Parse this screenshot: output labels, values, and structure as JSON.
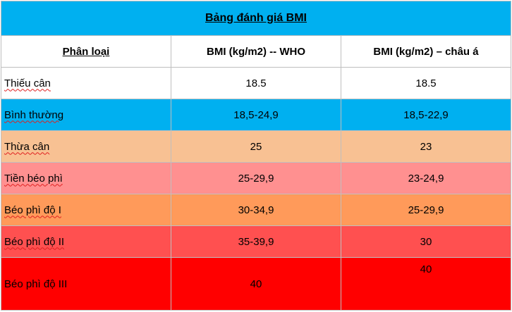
{
  "table": {
    "title": "Bảng đánh giá BMI",
    "headers": [
      "Phân loại",
      "BMI (kg/m2) -- WHO",
      "BMI (kg/m2) – châu á"
    ],
    "rows": [
      {
        "category": "Thiếu cân",
        "who": "18.5",
        "asia": "18.5",
        "color": "#ffffff"
      },
      {
        "category": "Bình thường",
        "who": "18,5-24,9",
        "asia": "18,5-22,9",
        "color": "#00b0f0"
      },
      {
        "category": "Thừa cân",
        "who": "25",
        "asia": "23",
        "color": "#f8c193"
      },
      {
        "category": "Tiền béo phì",
        "who": "25-29,9",
        "asia": "23-24,9",
        "color": "#ff9090"
      },
      {
        "category": "Béo phì độ I",
        "who": "30-34,9",
        "asia": "25-29,9",
        "color": "#ff9a5a"
      },
      {
        "category": "Béo phì độ II",
        "who": "35-39,9",
        "asia": "30",
        "color": "#ff5050"
      },
      {
        "category": "Béo phì độ III",
        "who": "40",
        "asia": "40",
        "color": "#ff0000"
      }
    ]
  },
  "colors": {
    "title_bg": "#00b0f0",
    "border": "#bfbfbf",
    "spellcheck_underline": "#e02020"
  }
}
